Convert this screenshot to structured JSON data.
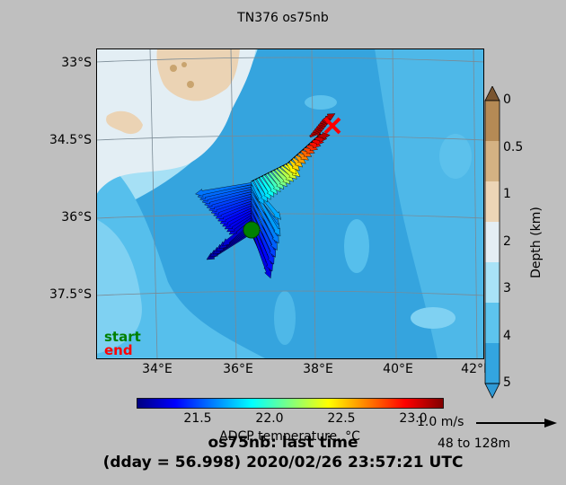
{
  "title": "TN376 os75nb",
  "lat_labels": [
    "33°S",
    "34.5°S",
    "36°S",
    "37.5°S"
  ],
  "lon_labels": [
    "34°E",
    "36°E",
    "38°E",
    "40°E",
    "42°E"
  ],
  "depth_colorbar": {
    "label": "Depth (km)",
    "ticks": [
      "0",
      "0.5",
      "1",
      "2",
      "3",
      "4",
      "5"
    ],
    "colors": [
      "#b58a55",
      "#d4b283",
      "#ecd5b6",
      "#e4eef4",
      "#a9e3f7",
      "#5dc4ee",
      "#33a5e0"
    ]
  },
  "temp_colorbar": {
    "label": "ADCP temperature, °C",
    "ticks": [
      "21.5",
      "22.0",
      "22.5",
      "23.0"
    ]
  },
  "legend": {
    "start": "start",
    "end": "end",
    "start_color": "#008000",
    "end_color": "#ff0000"
  },
  "scale": {
    "label": "1.0 m/s",
    "depth_range": "48 to 128m"
  },
  "footer": {
    "line1": "os75nb: last time",
    "line2": "(dday = 56.998) 2020/02/26 23:57:21 UTC"
  },
  "chart_data": {
    "type": "map",
    "title": "TN376 os75nb",
    "lon_range": [
      32.5,
      42.5
    ],
    "lat_range": [
      -38.8,
      -32.7
    ],
    "ship_track": [
      {
        "lon": 36.3,
        "lat": -36.25
      },
      {
        "lon": 36.3,
        "lat": -35.0
      },
      {
        "lon": 37.2,
        "lat": -34.8
      },
      {
        "lon": 38.0,
        "lat": -34.4
      }
    ],
    "start_position": {
      "lon": 36.3,
      "lat": -36.25
    },
    "end_position": {
      "lon": 38.35,
      "lat": -34.15
    },
    "temperature_range_c": [
      21.0,
      23.3
    ]
  }
}
